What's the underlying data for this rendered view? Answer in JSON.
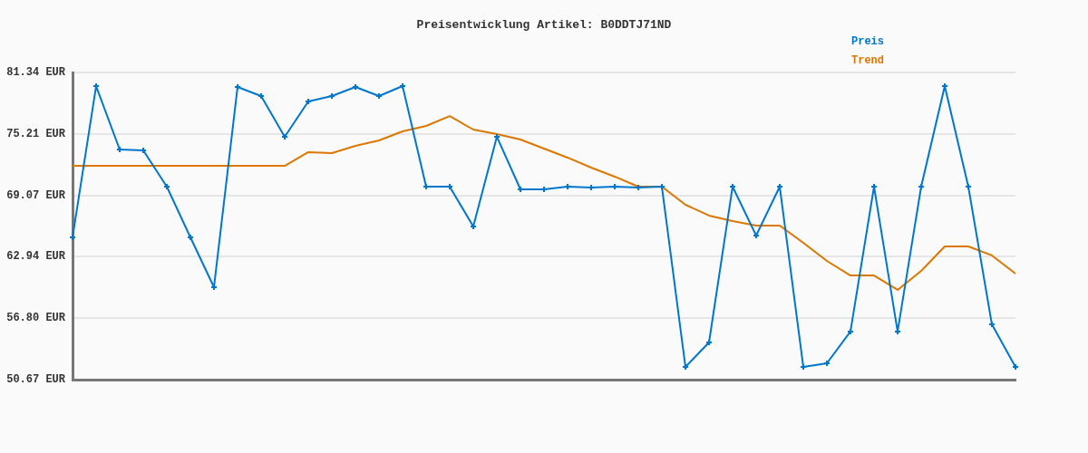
{
  "chart_data": {
    "type": "line",
    "title": "Preisentwicklung Artikel: B0DDTJ71ND",
    "categories": [
      null,
      null,
      null,
      null,
      null,
      null,
      null,
      null,
      null,
      null,
      null,
      null,
      null,
      null,
      null,
      null,
      null,
      null,
      null,
      null,
      null,
      null,
      null,
      null,
      null,
      null,
      null,
      null,
      null,
      null,
      null,
      null,
      null,
      null,
      null,
      null,
      null,
      null,
      null,
      null,
      null
    ],
    "series": [
      {
        "name": "Preis",
        "color": "#0077cc",
        "marker": "cross",
        "values": [
          64.87,
          79.98,
          73.65,
          73.56,
          69.94,
          64.87,
          59.9,
          79.89,
          78.99,
          74.92,
          78.45,
          78.99,
          79.89,
          78.99,
          79.98,
          69.94,
          69.94,
          65.96,
          74.92,
          69.67,
          69.67,
          69.94,
          69.85,
          69.94,
          69.85,
          69.94,
          51.94,
          54.38,
          69.94,
          65.06,
          69.94,
          51.94,
          52.3,
          55.47,
          69.94,
          55.47,
          69.94,
          79.98,
          69.94,
          56.19,
          51.94
        ]
      },
      {
        "name": "Trend",
        "color": "#dd7700",
        "marker": "none",
        "values": [
          72.02,
          72.02,
          72.02,
          72.02,
          72.02,
          72.02,
          72.02,
          72.02,
          72.02,
          72.02,
          73.38,
          73.29,
          74.01,
          74.55,
          75.46,
          76.0,
          76.98,
          75.64,
          75.19,
          74.65,
          73.74,
          72.84,
          71.84,
          70.94,
          69.94,
          69.94,
          68.13,
          67.05,
          66.5,
          66.05,
          66.05,
          64.33,
          62.52,
          61.07,
          61.07,
          59.63,
          61.53,
          63.97,
          63.97,
          63.07,
          61.26
        ]
      }
    ],
    "ylim": [
      50.67,
      81.34
    ],
    "yticks": [
      {
        "value": 50.67,
        "label": "50.67 EUR"
      },
      {
        "value": 56.8,
        "label": "56.80 EUR"
      },
      {
        "value": 62.94,
        "label": "62.94 EUR"
      },
      {
        "value": 69.07,
        "label": "69.07 EUR"
      },
      {
        "value": 75.21,
        "label": "75.21 EUR"
      },
      {
        "value": 81.34,
        "label": "81.34 EUR"
      }
    ],
    "grid": "y",
    "legend": "top right",
    "line_style": "solid",
    "tick_labels": "y"
  }
}
